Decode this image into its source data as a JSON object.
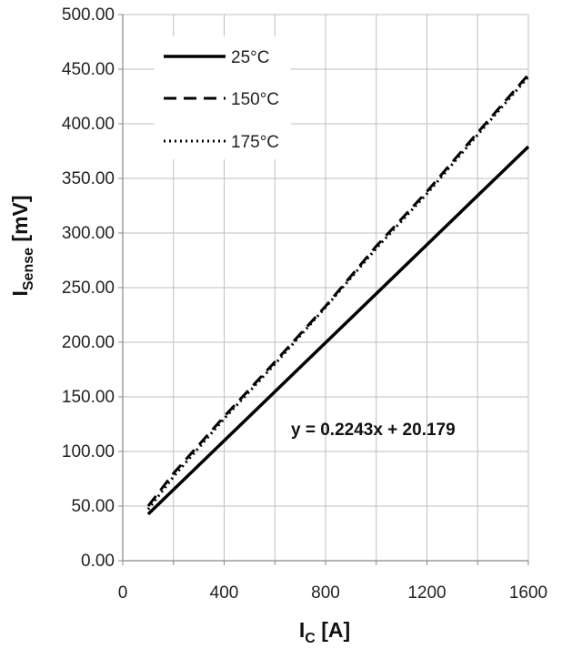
{
  "chart_data": {
    "type": "line",
    "xlabel": {
      "main": "I",
      "sub": "C",
      "rest": " [A]"
    },
    "ylabel": {
      "main": "I",
      "sub": "Sense",
      "rest": " [mV]"
    },
    "xlim": [
      0,
      1600
    ],
    "ylim": [
      0,
      500
    ],
    "x_ticks": [
      0,
      400,
      800,
      1200,
      1600
    ],
    "x_tick_labels": [
      "0",
      "400",
      "800",
      "1200",
      "1600"
    ],
    "x_minor_gridlines": [
      200,
      600,
      1000,
      1400
    ],
    "y_ticks": [
      0,
      50,
      100,
      150,
      200,
      250,
      300,
      350,
      400,
      450,
      500
    ],
    "y_tick_labels": [
      "0.00",
      "50.00",
      "100.00",
      "150.00",
      "200.00",
      "250.00",
      "300.00",
      "350.00",
      "400.00",
      "450.00",
      "500.00"
    ],
    "grid": true,
    "legend_position": "top-left",
    "annotation": "y = 0.2243x + 20.179",
    "series": [
      {
        "name": "25°C",
        "style": "solid",
        "x": [
          100,
          1600
        ],
        "y": [
          42.6,
          379.1
        ]
      },
      {
        "name": "150°C",
        "style": "dash",
        "x": [
          100,
          200,
          400,
          600,
          800,
          1000,
          1200,
          1400,
          1600
        ],
        "y": [
          50,
          80,
          132,
          182,
          233,
          288,
          338,
          392,
          445
        ]
      },
      {
        "name": "175°C",
        "style": "dot",
        "x": [
          100,
          200,
          400,
          600,
          800,
          1000,
          1200,
          1400,
          1600
        ],
        "y": [
          47,
          77,
          130,
          180,
          232,
          286,
          336,
          390,
          443
        ]
      }
    ],
    "colors": {
      "line": "#000000",
      "grid": "#bfbfbf",
      "axis": "#888888"
    }
  }
}
